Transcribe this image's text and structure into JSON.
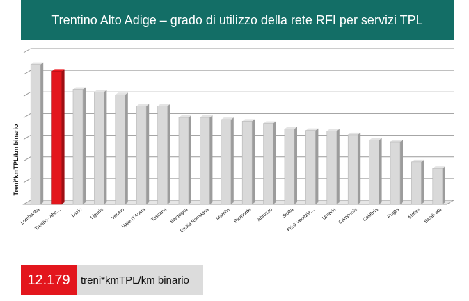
{
  "header": {
    "title": "Trentino Alto Adige – grado di utilizzo della rete RFI per servizi TPL"
  },
  "footer": {
    "value": "12.179",
    "unit": "treni*kmTPL/km binario"
  },
  "colors": {
    "bar": "#d9d9d9",
    "highlight": "#e3161d",
    "title_bg": "#136e66"
  },
  "chart_data": {
    "type": "bar",
    "title": "Trentino Alto Adige – grado di utilizzo della rete RFI per servizi TPL",
    "xlabel": "",
    "ylabel": "Treni*kmTPL/km binario",
    "grid": true,
    "legend": "none",
    "ylim": [
      0,
      14000
    ],
    "highlight_category": "Trentino Alto…",
    "categories": [
      "Lombardia",
      "Trentino Alto…",
      "Lazio",
      "Liguria",
      "Veneto",
      "Valle D'Aosta",
      "Toscana",
      "Sardegna",
      "Emilia Romagna",
      "Marche",
      "Piemonte",
      "Abruzzo",
      "Sicilia",
      "Friuli Venezia…",
      "Umbria",
      "Campania",
      "Calabria",
      "Puglia",
      "Molise",
      "Basilicata"
    ],
    "values": [
      12800,
      12179,
      10500,
      10250,
      10000,
      8950,
      8950,
      7900,
      7900,
      7700,
      7550,
      7350,
      6850,
      6700,
      6650,
      6300,
      5800,
      5650,
      3800,
      3200
    ]
  }
}
